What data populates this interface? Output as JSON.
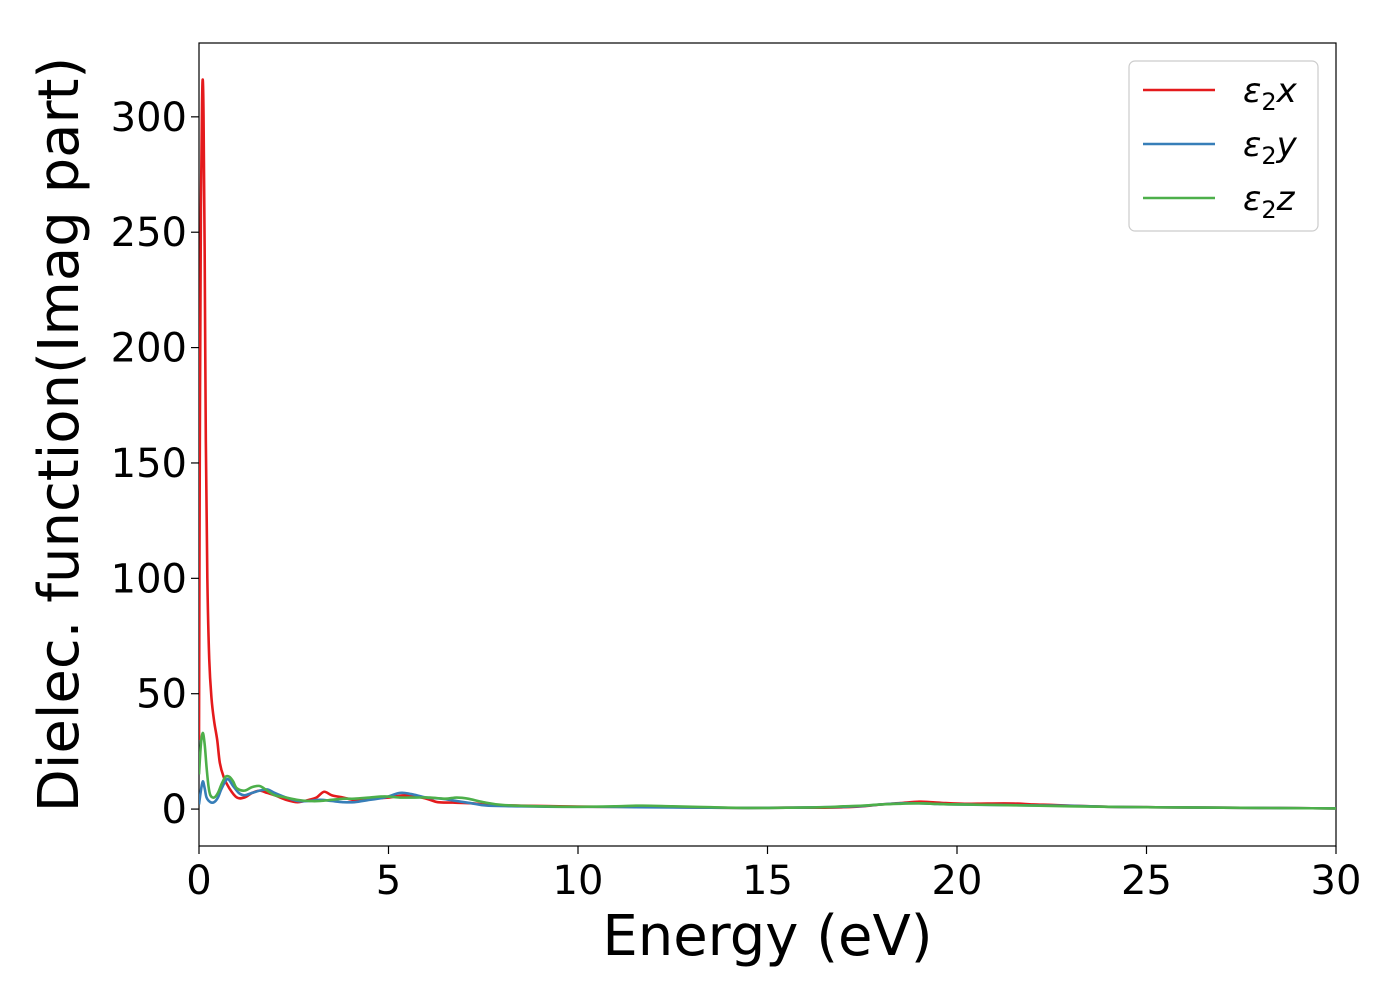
{
  "chart_data": {
    "type": "line",
    "title": "",
    "xlabel": "Energy (eV)",
    "ylabel": "Dielec. function(Imag part)",
    "xlim": [
      0,
      30
    ],
    "ylim": [
      -16,
      332
    ],
    "xticks": [
      0,
      5,
      10,
      15,
      20,
      25,
      30
    ],
    "yticks": [
      0,
      50,
      100,
      150,
      200,
      250,
      300
    ],
    "grid": false,
    "legend_position": "top-right",
    "series": [
      {
        "name": "ε2x",
        "label_parts": [
          "ε",
          "2",
          "x"
        ],
        "color": "#e41a1c",
        "x": [
          0,
          0.02,
          0.05,
          0.08,
          0.1,
          0.12,
          0.15,
          0.18,
          0.22,
          0.27,
          0.33,
          0.4,
          0.48,
          0.55,
          0.65,
          0.8,
          1.0,
          1.2,
          1.4,
          1.6,
          1.8,
          2.0,
          2.3,
          2.6,
          2.9,
          3.1,
          3.3,
          3.5,
          3.8,
          4.1,
          4.5,
          5.0,
          5.5,
          6.0,
          6.3,
          6.7,
          7.2,
          7.7,
          8.5,
          9.5,
          10.5,
          11.5,
          12.5,
          13.5,
          14.5,
          15.5,
          16.5,
          17.0,
          17.5,
          18.0,
          18.5,
          19.0,
          19.3,
          19.7,
          20.2,
          20.8,
          21.5,
          22.0,
          22.5,
          23.0,
          24.0,
          25.0,
          26.0,
          27.0,
          28.0,
          29.0,
          30.0
        ],
        "y": [
          30,
          150,
          260,
          305,
          316,
          300,
          240,
          160,
          100,
          65,
          48,
          38,
          30,
          20,
          14,
          9,
          5,
          5,
          7,
          8,
          7,
          6,
          4,
          3,
          4,
          5,
          7.5,
          6,
          5,
          4,
          4.5,
          5,
          6,
          4.5,
          3,
          2.8,
          2.5,
          1.8,
          1.5,
          1.2,
          1,
          1,
          0.8,
          0.6,
          0.5,
          0.6,
          0.6,
          0.8,
          1.2,
          2,
          2.6,
          3.2,
          3,
          2.6,
          2.3,
          2.4,
          2.4,
          2,
          1.8,
          1.5,
          1,
          0.8,
          0.7,
          0.6,
          0.5,
          0.4,
          0.3
        ]
      },
      {
        "name": "ε2y",
        "label_parts": [
          "ε",
          "2",
          "y"
        ],
        "color": "#377eb8",
        "x": [
          0,
          0.05,
          0.1,
          0.15,
          0.2,
          0.3,
          0.4,
          0.5,
          0.6,
          0.75,
          0.9,
          1.05,
          1.2,
          1.4,
          1.6,
          1.8,
          2.0,
          2.3,
          2.6,
          2.9,
          3.2,
          3.5,
          3.8,
          4.1,
          4.5,
          4.9,
          5.3,
          5.6,
          6.0,
          6.4,
          6.8,
          7.2,
          7.6,
          8.5,
          9.5,
          10.5,
          11.5,
          12.5,
          13.5,
          14.5,
          15.5,
          16.5,
          17.0,
          17.5,
          18.0,
          18.5,
          19.0,
          19.5,
          20.0,
          21.0,
          22.0,
          23.0,
          24.0,
          25.0,
          26.0,
          27.0,
          28.0,
          29.0,
          30.0
        ],
        "y": [
          2,
          8,
          12,
          9,
          5,
          3,
          3,
          5,
          9,
          13,
          10,
          7,
          6,
          7,
          8,
          8.5,
          7,
          5,
          3.5,
          3.5,
          4,
          3.5,
          3,
          3,
          4,
          5,
          7,
          6.5,
          5,
          4.5,
          3.5,
          2.5,
          1.5,
          1.2,
          1,
          1,
          0.8,
          0.7,
          0.6,
          0.5,
          0.6,
          0.8,
          1,
          1.3,
          2,
          2.5,
          2.5,
          2.2,
          2,
          1.8,
          1.6,
          1.4,
          1,
          0.8,
          0.7,
          0.6,
          0.5,
          0.4,
          0.3
        ]
      },
      {
        "name": "ε2z",
        "label_parts": [
          "ε",
          "2",
          "z"
        ],
        "color": "#4daf4a",
        "x": [
          0,
          0.05,
          0.1,
          0.15,
          0.2,
          0.25,
          0.3,
          0.4,
          0.5,
          0.6,
          0.7,
          0.8,
          0.9,
          1.0,
          1.2,
          1.4,
          1.6,
          1.8,
          2.0,
          2.3,
          2.6,
          2.9,
          3.2,
          3.5,
          3.8,
          4.1,
          4.5,
          4.9,
          5.3,
          5.7,
          6.1,
          6.5,
          6.8,
          7.1,
          7.5,
          8.0,
          9.0,
          10.0,
          11.0,
          11.7,
          12.5,
          13.5,
          14.5,
          15.5,
          16.5,
          17.0,
          17.5,
          18.0,
          18.5,
          19.0,
          19.5,
          20.0,
          21.0,
          22.0,
          23.0,
          24.0,
          25.0,
          26.0,
          27.0,
          28.0,
          29.0,
          30.0
        ],
        "y": [
          15,
          28,
          33,
          28,
          18,
          10,
          6,
          5,
          7,
          11,
          14,
          14,
          12,
          9,
          8,
          9.5,
          10,
          8,
          6,
          5,
          4,
          3.5,
          3.5,
          4,
          4.5,
          4.5,
          5,
          5.5,
          5,
          5,
          5,
          4.5,
          5,
          4.5,
          3,
          1.8,
          1.2,
          1,
          1.2,
          1.5,
          1.2,
          0.8,
          0.5,
          0.6,
          0.8,
          1.2,
          1.5,
          2,
          2.3,
          2.5,
          2.2,
          2,
          1.8,
          1.5,
          1.2,
          1,
          0.8,
          0.7,
          0.6,
          0.5,
          0.4,
          0.3
        ]
      }
    ]
  }
}
